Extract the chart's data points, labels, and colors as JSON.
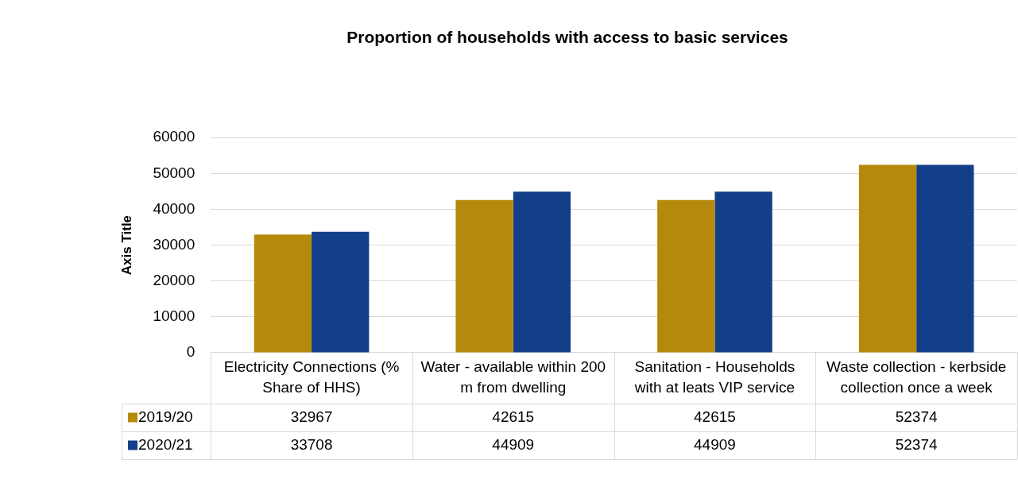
{
  "chart_data": {
    "type": "bar",
    "title": "Proportion of households with access to basic services",
    "ylabel": "Axis Title",
    "categories": [
      "Electricity Connections (% Share of HHS)",
      "Water - available within 200 m from dwelling",
      "Sanitation - Households with at leats VIP service",
      "Waste collection - kerbside collection once a week"
    ],
    "series": [
      {
        "name": "2019/20",
        "color": "#b58a0c",
        "values": [
          32967,
          42615,
          42615,
          52374
        ]
      },
      {
        "name": "2020/21",
        "color": "#133e8a",
        "values": [
          33708,
          44909,
          44909,
          52374
        ]
      }
    ],
    "ylim": [
      0,
      60000
    ],
    "yticks": [
      0,
      10000,
      20000,
      30000,
      40000,
      50000,
      60000
    ],
    "grid": "y",
    "data_labels": true,
    "legend": "bottom left"
  }
}
